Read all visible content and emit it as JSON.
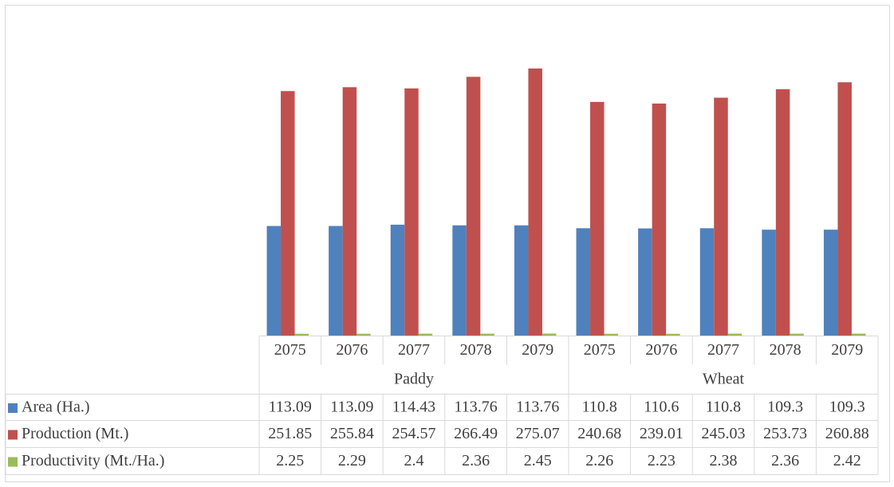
{
  "chart_data": {
    "type": "bar",
    "title": "",
    "groups": [
      {
        "name": "Paddy",
        "categories": [
          "2075",
          "2076",
          "2077",
          "2078",
          "2079"
        ]
      },
      {
        "name": "Wheat",
        "categories": [
          "2075",
          "2076",
          "2077",
          "2078",
          "2079"
        ]
      }
    ],
    "series": [
      {
        "name": "Area (Ha.)",
        "color": "#4f81bd",
        "values": [
          113.09,
          113.09,
          114.43,
          113.76,
          113.76,
          110.8,
          110.6,
          110.8,
          109.3,
          109.3
        ],
        "labels": [
          "113.09",
          "113.09",
          "114.43",
          "113.76",
          "113.76",
          "110.8",
          "110.6",
          "110.8",
          "109.3",
          "109.3"
        ]
      },
      {
        "name": "Production (Mt.)",
        "color": "#c0504d",
        "values": [
          251.85,
          255.84,
          254.57,
          266.49,
          275.07,
          240.68,
          239.01,
          245.03,
          253.73,
          260.88
        ],
        "labels": [
          "251.85",
          "255.84",
          "254.57",
          "266.49",
          "275.07",
          "240.68",
          "239.01",
          "245.03",
          "253.73",
          "260.88"
        ]
      },
      {
        "name": "Productivity (Mt./Ha.)",
        "color": "#9bbb59",
        "values": [
          2.25,
          2.29,
          2.4,
          2.36,
          2.45,
          2.26,
          2.23,
          2.38,
          2.36,
          2.42
        ],
        "labels": [
          "2.25",
          "2.29",
          "2.4",
          "2.36",
          "2.45",
          "2.26",
          "2.23",
          "2.38",
          "2.36",
          "2.42"
        ]
      }
    ],
    "ylim": [
      0,
      300
    ],
    "grid": false,
    "legend": "data-table",
    "data_table": true
  }
}
